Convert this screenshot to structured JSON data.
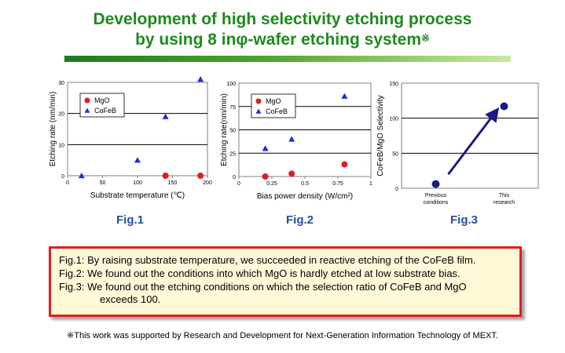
{
  "header": {
    "title_line1": "Development of high selectivity etching process",
    "title_line2": "by using 8 inφ-wafer etching system",
    "title_ref_mark": "※"
  },
  "colors": {
    "green_title": "#1d8a1d",
    "fig_label": "#1f4fa8",
    "mgo": "#e21d1d",
    "cofeb": "#1a2fd6",
    "selectivity": "#1a1a80"
  },
  "chart_data": [
    {
      "type": "scatter",
      "fig_label": "Fig.1",
      "xlabel": "Substrate temperature (℃)",
      "ylabel": "Etching rate (nm/min)",
      "xlim": [
        0,
        200
      ],
      "ylim": [
        0,
        30
      ],
      "xticks": [
        "0",
        "50",
        "100",
        "150",
        "200"
      ],
      "yticks": [
        "0",
        "10",
        "20",
        "30"
      ],
      "grid": true,
      "legend_position": "top-left",
      "series": [
        {
          "name": "MgO",
          "marker": "circle",
          "x": [
            140,
            190
          ],
          "y": [
            0,
            0
          ]
        },
        {
          "name": "CoFeB",
          "marker": "triangle",
          "x": [
            20,
            100,
            140,
            190
          ],
          "y": [
            0,
            5,
            19,
            31
          ]
        }
      ]
    },
    {
      "type": "scatter",
      "fig_label": "Fig.2",
      "xlabel": "Bias power density (W/cm²)",
      "ylabel": "Etching rate(nm/min)",
      "xlim": [
        0,
        1
      ],
      "ylim": [
        0,
        100
      ],
      "xticks": [
        "0",
        "0.25",
        "0.5",
        "0.75",
        "1"
      ],
      "yticks": [
        "0",
        "25",
        "50",
        "75",
        "100"
      ],
      "grid": true,
      "legend_position": "top-left",
      "series": [
        {
          "name": "MgO",
          "marker": "circle",
          "x": [
            0.2,
            0.4,
            0.8
          ],
          "y": [
            0,
            3,
            13
          ]
        },
        {
          "name": "CoFeB",
          "marker": "triangle",
          "x": [
            0.2,
            0.4,
            0.8
          ],
          "y": [
            30,
            40,
            86
          ]
        }
      ]
    },
    {
      "type": "scatter",
      "fig_label": "Fig.3",
      "xlabel": "",
      "ylabel": "CoFeB/MgO Selectivity",
      "ylim": [
        0,
        150
      ],
      "yticks": [
        "0",
        "50",
        "100",
        "150"
      ],
      "categories": [
        "Previous conditions",
        "This research"
      ],
      "grid": true,
      "series": [
        {
          "name": "",
          "marker": "circle",
          "values": [
            6,
            117
          ]
        }
      ],
      "arrow": {
        "from": [
          "Previous conditions",
          20
        ],
        "to": [
          "This research",
          110
        ]
      }
    }
  ],
  "notes": {
    "fig1_label": "Fig.1:",
    "fig1_text": "By raising substrate temperature, we succeeded in reactive etching of the CoFeB film.",
    "fig2_label": "Fig.2:",
    "fig2_text": "We found out the conditions into which MgO is hardly etched at low substrate bias.",
    "fig3_label": "Fig.3:",
    "fig3_text": "We found out the etching conditions on which the selection ratio of CoFeB and MgO",
    "fig3_text_cont": "exceeds 100."
  },
  "footer": {
    "text": "※This work was supported by Research and Development for Next-Generation Information Technology of MEXT."
  }
}
